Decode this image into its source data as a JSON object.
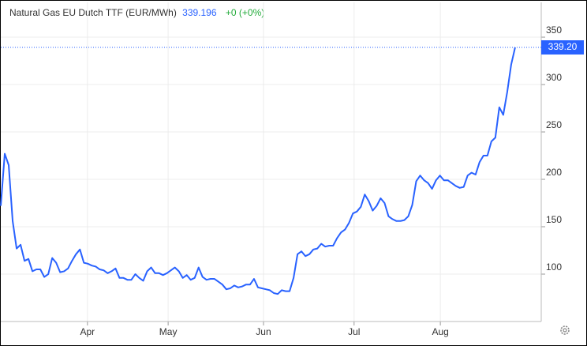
{
  "chart_data": {
    "type": "line",
    "title": "Natural Gas EU Dutch TTF (EUR/MWh)",
    "price": "339.196",
    "change": "+0 (+0%)",
    "last_label": "339.20",
    "color": "#2962ff",
    "values": [
      172,
      227,
      215,
      156,
      127,
      131,
      114,
      116,
      103,
      105,
      105,
      97,
      100,
      117,
      112,
      102,
      103,
      106,
      114,
      121,
      126,
      112,
      111,
      109,
      108,
      105,
      104,
      101,
      103,
      106,
      96,
      96,
      94,
      94,
      100,
      96,
      93,
      103,
      107,
      101,
      101,
      99,
      101,
      104,
      107,
      103,
      96,
      99,
      94,
      96,
      107,
      97,
      94,
      95,
      95,
      92,
      89,
      84,
      85,
      88,
      86,
      87,
      89,
      89,
      95,
      86,
      85,
      84,
      83,
      80,
      79,
      83,
      82,
      82,
      96,
      121,
      124,
      119,
      121,
      126,
      127,
      132,
      129,
      130,
      130,
      138,
      144,
      147,
      154,
      164,
      166,
      171,
      184,
      177,
      167,
      172,
      180,
      175,
      161,
      158,
      156,
      156,
      157,
      161,
      173,
      198,
      204,
      199,
      196,
      190,
      199,
      204,
      199,
      199,
      196,
      193,
      191,
      192,
      204,
      207,
      205,
      218,
      225,
      225,
      240,
      244,
      276,
      268,
      292,
      321,
      339.196
    ],
    "xlim": [
      0,
      136.6
    ],
    "xticks": [
      {
        "value": 21.9,
        "label": "Apr"
      },
      {
        "value": 42.3,
        "label": "May"
      },
      {
        "value": 66.4,
        "label": "Jun"
      },
      {
        "value": 89.3,
        "label": "Jul"
      },
      {
        "value": 111.1,
        "label": "Aug"
      }
    ],
    "ylim": [
      50,
      386.7
    ],
    "yticks": [
      100,
      150,
      200,
      250,
      300,
      350
    ],
    "grid": true
  }
}
